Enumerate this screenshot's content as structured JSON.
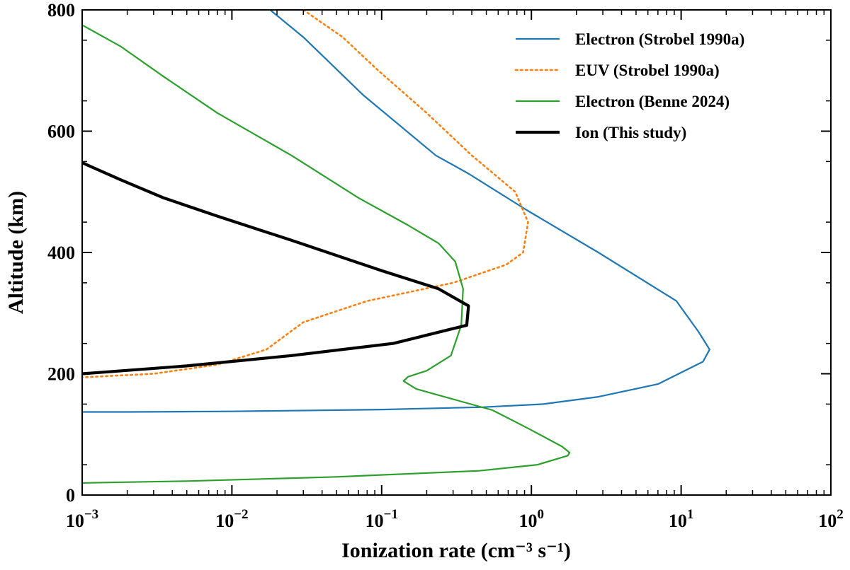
{
  "chart_data": {
    "type": "line",
    "xscale": "log",
    "xlim": [
      0.001,
      100
    ],
    "ylim": [
      0,
      800
    ],
    "xlabel": "Ionization rate (cm⁻³ s⁻¹)",
    "ylabel": "Altitude (km)",
    "x_ticks": [
      {
        "value": 0.001,
        "base": "10",
        "exp": "−3"
      },
      {
        "value": 0.01,
        "base": "10",
        "exp": "−2"
      },
      {
        "value": 0.1,
        "base": "10",
        "exp": "−1"
      },
      {
        "value": 1,
        "base": "10",
        "exp": "0"
      },
      {
        "value": 10,
        "base": "10",
        "exp": "1"
      },
      {
        "value": 100,
        "base": "10",
        "exp": "2"
      }
    ],
    "y_ticks": [
      {
        "value": 0,
        "label": "0"
      },
      {
        "value": 200,
        "label": "200"
      },
      {
        "value": 400,
        "label": "400"
      },
      {
        "value": 600,
        "label": "600"
      },
      {
        "value": 800,
        "label": "800"
      }
    ],
    "legend_position": "top-right",
    "series": [
      {
        "name": "Electron (Strobel 1990a)",
        "color": "#1f77b4",
        "style": "solid",
        "x": [
          0.018,
          0.03,
          0.075,
          0.23,
          0.38,
          0.93,
          2.8,
          9.3,
          13,
          15.5,
          14,
          7,
          2.8,
          1.2,
          0.48,
          0.1,
          0.01,
          0.002,
          0.001
        ],
        "y": [
          800,
          755,
          660,
          560,
          530,
          470,
          400,
          320,
          270,
          240,
          220,
          183,
          162,
          150,
          145,
          141,
          138,
          137,
          137
        ]
      },
      {
        "name": "EUV (Strobel 1990a)",
        "color": "#ff7f0e",
        "style": "dotted",
        "x": [
          0.03,
          0.055,
          0.095,
          0.2,
          0.4,
          0.78,
          0.95,
          0.88,
          0.68,
          0.3,
          0.08,
          0.03,
          0.017,
          0.008,
          0.003,
          0.001
        ],
        "y": [
          800,
          755,
          700,
          630,
          560,
          500,
          450,
          400,
          380,
          350,
          320,
          285,
          240,
          215,
          200,
          194
        ]
      },
      {
        "name": "Electron (Benne 2024)",
        "color": "#2ca02c",
        "style": "solid",
        "x": [
          0.001,
          0.0018,
          0.0035,
          0.008,
          0.025,
          0.07,
          0.15,
          0.24,
          0.31,
          0.35,
          0.34,
          0.29,
          0.2,
          0.15,
          0.14,
          0.17,
          0.3,
          0.55,
          0.95,
          1.6,
          1.8,
          1.75,
          1.1,
          0.45,
          0.05,
          0.005,
          0.001
        ],
        "y": [
          775,
          740,
          690,
          630,
          560,
          490,
          445,
          415,
          385,
          340,
          280,
          230,
          205,
          195,
          188,
          175,
          158,
          140,
          110,
          80,
          70,
          65,
          50,
          40,
          30,
          23,
          20
        ]
      },
      {
        "name": "Ion (This study)",
        "color": "#000000",
        "style": "solid-thick",
        "x": [
          0.001,
          0.0018,
          0.0035,
          0.008,
          0.025,
          0.1,
          0.24,
          0.38,
          0.37,
          0.12,
          0.025,
          0.005,
          0.001
        ],
        "y": [
          548,
          520,
          490,
          460,
          420,
          370,
          340,
          312,
          280,
          250,
          230,
          213,
          200
        ]
      }
    ]
  }
}
